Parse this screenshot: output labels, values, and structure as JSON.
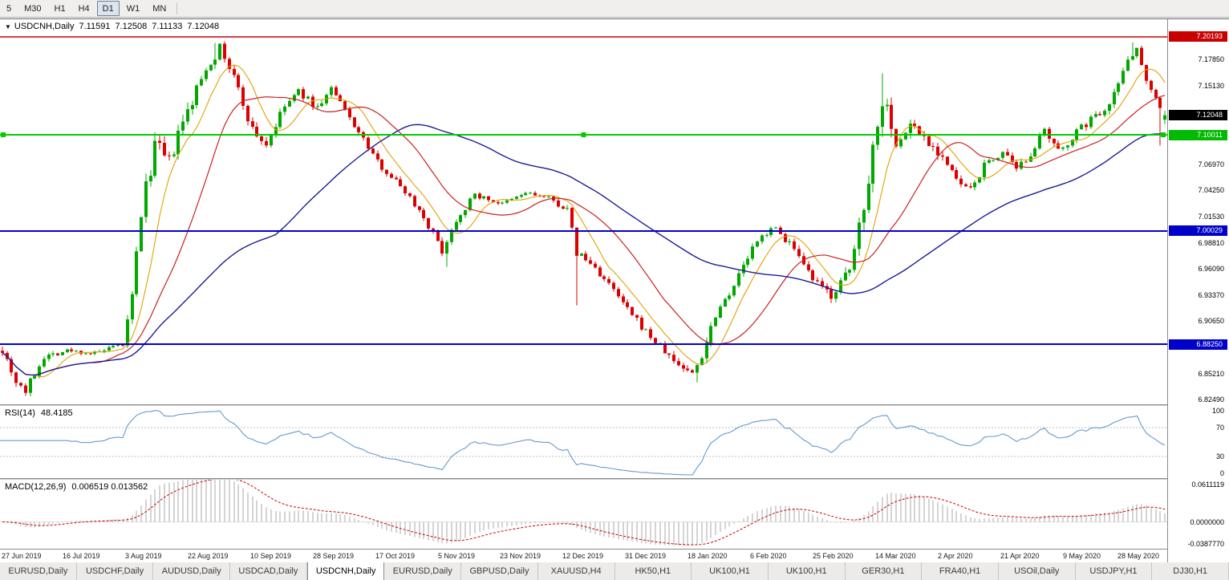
{
  "toolbar": {
    "timeframes": [
      {
        "label": "5",
        "active": false
      },
      {
        "label": "M30",
        "active": false
      },
      {
        "label": "H1",
        "active": false
      },
      {
        "label": "H4",
        "active": false
      },
      {
        "label": "D1",
        "active": true
      },
      {
        "label": "W1",
        "active": false
      },
      {
        "label": "MN",
        "active": false
      }
    ]
  },
  "chart_header": {
    "dropdown_icon": "▼",
    "symbol_label": "USDCNH,Daily",
    "open": "7.11591",
    "high": "7.12508",
    "low": "7.11133",
    "close": "7.12048"
  },
  "chart_data": {
    "type": "candlestick",
    "symbol": "USDCNH",
    "timeframe": "Daily",
    "bars": 252,
    "seed": 7,
    "label_step_bars": 13.5,
    "price_axis": {
      "top": 7.2202,
      "bottom": 6.8202,
      "ticks": [
        {
          "label": "7.17850",
          "value": 7.1785
        },
        {
          "label": "7.15130",
          "value": 7.1513
        },
        {
          "label": "7.06970",
          "value": 7.0697
        },
        {
          "label": "7.04250",
          "value": 7.0425
        },
        {
          "label": "7.01530",
          "value": 7.0153
        },
        {
          "label": "6.98810",
          "value": 6.9881
        },
        {
          "label": "6.96090",
          "value": 6.9609
        },
        {
          "label": "6.93370",
          "value": 6.9337
        },
        {
          "label": "6.90650",
          "value": 6.9065
        },
        {
          "label": "6.85210",
          "value": 6.8521
        },
        {
          "label": "6.82490",
          "value": 6.8249
        }
      ]
    },
    "price_badges": [
      {
        "label": "7.20193",
        "value": 7.20193,
        "bg": "#C80000",
        "fg": "#FFFFFF",
        "name": "resistance-price-badge"
      },
      {
        "label": "7.12048",
        "value": 7.12048,
        "bg": "#000000",
        "fg": "#FFFFFF",
        "name": "last-price-badge"
      },
      {
        "label": "7.10011",
        "value": 7.10011,
        "bg": "#00BB00",
        "fg": "#FFFFFF",
        "name": "support-price-badge"
      },
      {
        "label": "7.00029",
        "value": 7.00029,
        "bg": "#0000C8",
        "fg": "#FFFFFF",
        "name": "level-price-badge-1"
      },
      {
        "label": "6.88250",
        "value": 6.8825,
        "bg": "#0000C8",
        "fg": "#FFFFFF",
        "name": "level-price-badge-2"
      }
    ],
    "hlines": [
      {
        "value": 7.20193,
        "color": "#CC0000",
        "width": 1.5,
        "handles": false
      },
      {
        "value": 7.10011,
        "color": "#00CC00",
        "width": 2,
        "handles": true
      },
      {
        "value": 7.00029,
        "color": "#0000CC",
        "width": 2,
        "handles": false
      },
      {
        "value": 6.8825,
        "color": "#0000CC",
        "width": 2,
        "handles": false
      }
    ],
    "x_labels": [
      "27 Jun 2019",
      "16 Jul 2019",
      "3 Aug 2019",
      "22 Aug 2019",
      "10 Sep 2019",
      "28 Sep 2019",
      "17 Oct 2019",
      "5 Nov 2019",
      "23 Nov 2019",
      "12 Dec 2019",
      "31 Dec 2019",
      "18 Jan 2020",
      "6 Feb 2020",
      "25 Feb 2020",
      "14 Mar 2020",
      "2 Apr 2020",
      "21 Apr 2020",
      "9 May 2020",
      "28 May 2020"
    ],
    "candle_colors": {
      "up": "#00A800",
      "down": "#DD0000"
    },
    "moving_averages": [
      {
        "name": "fast-ma",
        "period": 8,
        "color": "#E2A000",
        "width": 1.1
      },
      {
        "name": "medium-ma",
        "period": 20,
        "color": "#CC2020",
        "width": 1.2
      },
      {
        "name": "slow-ma",
        "period": 60,
        "color": "#1C1C96",
        "width": 1.4
      }
    ],
    "candles_model": {
      "waypoints": [
        [
          0,
          6.878,
          0.01
        ],
        [
          3,
          6.845,
          0.012
        ],
        [
          5,
          6.834,
          0.01
        ],
        [
          9,
          6.87,
          0.007
        ],
        [
          14,
          6.876,
          0.005
        ],
        [
          20,
          6.873,
          0.005
        ],
        [
          26,
          6.882,
          0.005
        ],
        [
          28,
          6.93,
          0.016
        ],
        [
          30,
          7.02,
          0.022
        ],
        [
          33,
          7.09,
          0.02
        ],
        [
          36,
          7.07,
          0.018
        ],
        [
          38,
          7.1,
          0.016
        ],
        [
          41,
          7.135,
          0.016
        ],
        [
          44,
          7.17,
          0.013
        ],
        [
          47,
          7.19,
          0.011
        ],
        [
          50,
          7.16,
          0.012
        ],
        [
          54,
          7.105,
          0.012
        ],
        [
          57,
          7.09,
          0.01
        ],
        [
          61,
          7.13,
          0.009
        ],
        [
          64,
          7.145,
          0.008
        ],
        [
          68,
          7.128,
          0.008
        ],
        [
          71,
          7.148,
          0.007
        ],
        [
          75,
          7.118,
          0.007
        ],
        [
          81,
          7.072,
          0.007
        ],
        [
          87,
          7.042,
          0.007
        ],
        [
          91,
          7.015,
          0.008
        ],
        [
          95,
          6.98,
          0.009
        ],
        [
          98,
          7.012,
          0.008
        ],
        [
          102,
          7.038,
          0.006
        ],
        [
          108,
          7.028,
          0.005
        ],
        [
          113,
          7.04,
          0.005
        ],
        [
          118,
          7.034,
          0.005
        ],
        [
          122,
          7.022,
          0.007
        ],
        [
          124,
          6.978,
          0.012
        ],
        [
          128,
          6.962,
          0.008
        ],
        [
          132,
          6.938,
          0.008
        ],
        [
          136,
          6.912,
          0.008
        ],
        [
          141,
          6.885,
          0.008
        ],
        [
          145,
          6.865,
          0.009
        ],
        [
          149,
          6.852,
          0.011
        ],
        [
          151,
          6.872,
          0.013
        ],
        [
          154,
          6.915,
          0.011
        ],
        [
          158,
          6.945,
          0.009
        ],
        [
          162,
          6.982,
          0.008
        ],
        [
          166,
          7.005,
          0.008
        ],
        [
          170,
          6.988,
          0.009
        ],
        [
          173,
          6.962,
          0.009
        ],
        [
          176,
          6.944,
          0.01
        ],
        [
          179,
          6.934,
          0.011
        ],
        [
          183,
          6.958,
          0.013
        ],
        [
          186,
          7.03,
          0.022
        ],
        [
          189,
          7.115,
          0.026
        ],
        [
          191,
          7.14,
          0.022
        ],
        [
          193,
          7.085,
          0.02
        ],
        [
          196,
          7.112,
          0.014
        ],
        [
          199,
          7.098,
          0.012
        ],
        [
          203,
          7.078,
          0.011
        ],
        [
          206,
          7.052,
          0.01
        ],
        [
          209,
          7.042,
          0.009
        ],
        [
          212,
          7.068,
          0.009
        ],
        [
          216,
          7.082,
          0.008
        ],
        [
          219,
          7.062,
          0.009
        ],
        [
          222,
          7.082,
          0.01
        ],
        [
          225,
          7.102,
          0.01
        ],
        [
          228,
          7.082,
          0.009
        ],
        [
          231,
          7.098,
          0.009
        ],
        [
          234,
          7.112,
          0.009
        ],
        [
          238,
          7.128,
          0.009
        ],
        [
          241,
          7.152,
          0.01
        ],
        [
          243,
          7.182,
          0.01
        ],
        [
          245,
          7.188,
          0.009
        ],
        [
          247,
          7.16,
          0.01
        ],
        [
          249,
          7.138,
          0.01
        ],
        [
          251,
          7.12,
          0.009
        ]
      ],
      "spikes": [
        {
          "i": 5,
          "low": 6.829
        },
        {
          "i": 46,
          "high": 7.1955
        },
        {
          "i": 96,
          "low": 6.963
        },
        {
          "i": 124,
          "low": 6.923
        },
        {
          "i": 150,
          "low": 6.843
        },
        {
          "i": 190,
          "high": 7.164
        },
        {
          "i": 244,
          "high": 7.196
        },
        {
          "i": 250,
          "low": 7.089
        }
      ],
      "last": {
        "open": 7.11591,
        "high": 7.12508,
        "low": 7.11133,
        "close": 7.12048
      }
    },
    "rsi": {
      "label": "RSI(14)",
      "value": "48.4185",
      "period": 14,
      "levels": [
        70,
        30
      ],
      "color": "#6699CC",
      "axis_labels": [
        {
          "label": "100",
          "value": 100
        },
        {
          "label": "70",
          "value": 70
        },
        {
          "label": "30",
          "value": 30
        },
        {
          "label": "0",
          "value": 0
        }
      ]
    },
    "macd": {
      "label": "MACD(12,26,9)",
      "value": "0.006519 0.013562",
      "fast": 12,
      "slow": 26,
      "signal_period": 9,
      "max": 0.0611119,
      "min": -0.038777,
      "hist_color": "#A8A8A8",
      "signal_color": "#CC0000",
      "axis_labels": [
        {
          "label": "0.0611119",
          "value": 0.0611119
        },
        {
          "label": "0.0000000",
          "value": 0
        },
        {
          "label": "-0.0387770",
          "value": -0.038777
        }
      ]
    }
  },
  "tabs": [
    {
      "label": "EURUSD,Daily",
      "active": false
    },
    {
      "label": "USDCHF,Daily",
      "active": false
    },
    {
      "label": "AUDUSD,Daily",
      "active": false
    },
    {
      "label": "USDCAD,Daily",
      "active": false
    },
    {
      "label": "USDCNH,Daily",
      "active": true
    },
    {
      "label": "EURUSD,Daily",
      "active": false
    },
    {
      "label": "GBPUSD,Daily",
      "active": false
    },
    {
      "label": "XAUUSD,H4",
      "active": false
    },
    {
      "label": "HK50,H1",
      "active": false
    },
    {
      "label": "UK100,H1",
      "active": false
    },
    {
      "label": "UK100,H1",
      "active": false
    },
    {
      "label": "GER30,H1",
      "active": false
    },
    {
      "label": "FRA40,H1",
      "active": false
    },
    {
      "label": "USOil,Daily",
      "active": false
    },
    {
      "label": "USDJPY,H1",
      "active": false
    },
    {
      "label": "DJ30,H1",
      "active": false
    }
  ]
}
